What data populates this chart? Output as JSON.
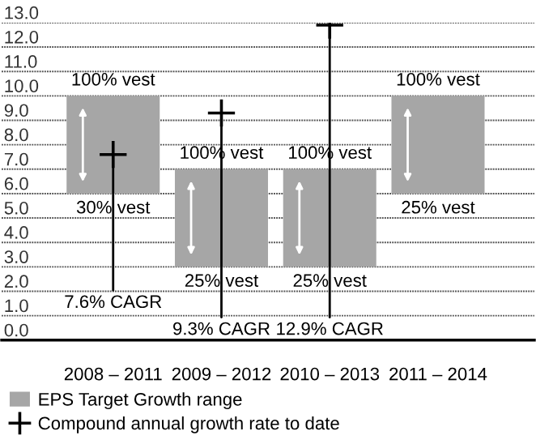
{
  "chart_data": {
    "type": "bar",
    "categories": [
      "2008 – 2011",
      "2009 – 2012",
      "2010 – 2013",
      "2011 – 2014"
    ],
    "series": [
      {
        "name": "EPS Target Growth range",
        "color": "#a6a6a6",
        "values": [
          4.0,
          4.0,
          4.0,
          4.0
        ],
        "base": [
          6.0,
          3.0,
          3.0,
          6.0
        ]
      },
      {
        "name": "Compound annual growth rate to date",
        "type": "scatter",
        "color": "#000000",
        "marker": "cross",
        "x": [
          "2008 – 2011",
          "2009 – 2012",
          "2010 – 2013"
        ],
        "values": [
          7.6,
          9.3,
          12.9
        ]
      }
    ],
    "ylim": [
      0,
      13
    ],
    "yticks": [
      {
        "value": 0,
        "label": "0.0"
      },
      {
        "value": 1,
        "label": "1.0"
      },
      {
        "value": 2,
        "label": "2.0"
      },
      {
        "value": 3,
        "label": "3.0"
      },
      {
        "value": 4,
        "label": "4.0"
      },
      {
        "value": 5,
        "label": "5.0"
      },
      {
        "value": 6,
        "label": "6.0"
      },
      {
        "value": 7,
        "label": "7.0"
      },
      {
        "value": 8,
        "label": "8.0"
      },
      {
        "value": 9,
        "label": "9.0"
      },
      {
        "value": 10,
        "label": "10.0"
      },
      {
        "value": 11,
        "label": "11.0"
      },
      {
        "value": 12,
        "label": "12.0"
      },
      {
        "value": 13,
        "label": "13.0"
      }
    ],
    "grid": "y",
    "legend": "bottom",
    "annotations": [
      {
        "text": "100% vest",
        "x": "2008 – 2011",
        "y": 10.0
      },
      {
        "text": "30% vest",
        "x": "2008 – 2011",
        "y": 6.0
      },
      {
        "text": "100% vest",
        "x": "2009 – 2012",
        "y": 7.0
      },
      {
        "text": "25% vest",
        "x": "2009 – 2012",
        "y": 3.0
      },
      {
        "text": "100% vest",
        "x": "2010 – 2013",
        "y": 7.0
      },
      {
        "text": "25% vest",
        "x": "2010 – 2013",
        "y": 3.0
      },
      {
        "text": "100% vest",
        "x": "2011 – 2014",
        "y": 10.0
      },
      {
        "text": "25% vest",
        "x": "2011 – 2014",
        "y": 6.0
      },
      {
        "text": "7.6% CAGR",
        "x": "2008 – 2011",
        "y": 7.6
      },
      {
        "text": "9.3% CAGR",
        "x": "2009 – 2012",
        "y": 9.3
      },
      {
        "text": "12.9% CAGR",
        "x": "2010 – 2013",
        "y": 12.9
      }
    ]
  }
}
